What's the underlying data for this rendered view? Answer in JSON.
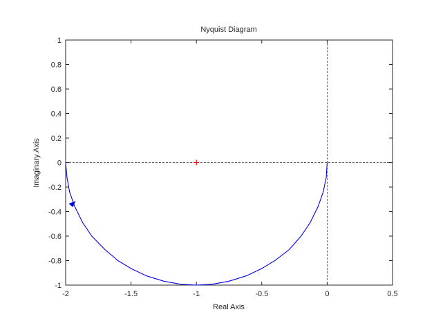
{
  "chart_data": {
    "type": "line",
    "title": "Nyquist Diagram",
    "xlabel": "Real Axis",
    "ylabel": "Imaginary Axis",
    "xlim": [
      -2,
      0.5
    ],
    "ylim": [
      -1,
      1
    ],
    "xticks": [
      "-2",
      "-1.5",
      "-1",
      "-0.5",
      "0",
      "0.5"
    ],
    "yticks": [
      "1",
      "0.8",
      "0.6",
      "0.4",
      "0.2",
      "0",
      "-0.2",
      "-0.4",
      "-0.6",
      "-0.8",
      "-1"
    ],
    "grid": false,
    "critical_point": {
      "x": -1,
      "y": 0,
      "color": "#ff0000"
    },
    "series": [
      {
        "color": "#0000ee",
        "x": [
          0,
          -0.007,
          -0.03,
          -0.07,
          -0.13,
          -0.2,
          -0.29,
          -0.4,
          -0.5,
          -0.62,
          -0.75,
          -0.88,
          -1,
          -1.12,
          -1.25,
          -1.38,
          -1.5,
          -1.6,
          -1.7,
          -1.8,
          -1.87,
          -1.93,
          -1.97,
          -1.99,
          -2
        ],
        "y": [
          0,
          -0.12,
          -0.24,
          -0.36,
          -0.49,
          -0.6,
          -0.71,
          -0.8,
          -0.865,
          -0.925,
          -0.968,
          -0.993,
          -1,
          -0.993,
          -0.968,
          -0.925,
          -0.865,
          -0.8,
          -0.71,
          -0.6,
          -0.49,
          -0.36,
          -0.24,
          -0.12,
          0
        ]
      }
    ],
    "arrow": {
      "x": -1.95,
      "y": -0.33,
      "direction": "up"
    }
  }
}
